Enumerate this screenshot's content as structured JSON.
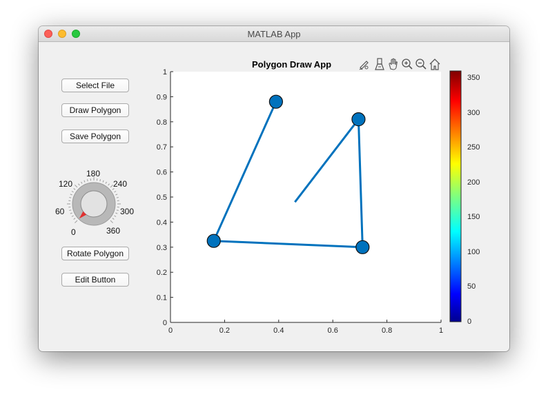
{
  "window": {
    "title": "MATLAB App"
  },
  "buttons": {
    "select_file": "Select File",
    "draw_polygon": "Draw Polygon",
    "save_polygon": "Save Polygon",
    "rotate_polygon": "Rotate Polygon",
    "edit_button": "Edit Button"
  },
  "knob": {
    "labels": [
      "0",
      "60",
      "120",
      "180",
      "240",
      "300",
      "360"
    ],
    "min": 0,
    "max": 360,
    "value": 0
  },
  "axes": {
    "title": "Polygon Draw App",
    "toolbar_icons": [
      "brush-icon",
      "data-tip-icon",
      "pan-hand-icon",
      "zoom-in-icon",
      "zoom-out-icon",
      "home-icon"
    ]
  },
  "chart_data": {
    "type": "line",
    "title": "Polygon Draw App",
    "xlim": [
      0,
      1
    ],
    "ylim": [
      0,
      1
    ],
    "x_ticks": [
      "0",
      "0.2",
      "0.4",
      "0.6",
      "0.8",
      "1"
    ],
    "y_ticks": [
      "0",
      "0.1",
      "0.2",
      "0.3",
      "0.4",
      "0.5",
      "0.6",
      "0.7",
      "0.8",
      "0.9",
      "1"
    ],
    "line_points": [
      {
        "x": 0.39,
        "y": 0.88
      },
      {
        "x": 0.16,
        "y": 0.325
      },
      {
        "x": 0.71,
        "y": 0.3
      },
      {
        "x": 0.695,
        "y": 0.81
      },
      {
        "x": 0.46,
        "y": 0.48
      }
    ],
    "vertices": [
      {
        "x": 0.39,
        "y": 0.88
      },
      {
        "x": 0.16,
        "y": 0.325
      },
      {
        "x": 0.71,
        "y": 0.3
      },
      {
        "x": 0.695,
        "y": 0.81
      }
    ],
    "line_color": "#0072bd",
    "colorbar": {
      "colormap": "jet",
      "range": [
        0,
        360
      ],
      "ticks": [
        "0",
        "50",
        "100",
        "150",
        "200",
        "250",
        "300",
        "350"
      ]
    }
  }
}
